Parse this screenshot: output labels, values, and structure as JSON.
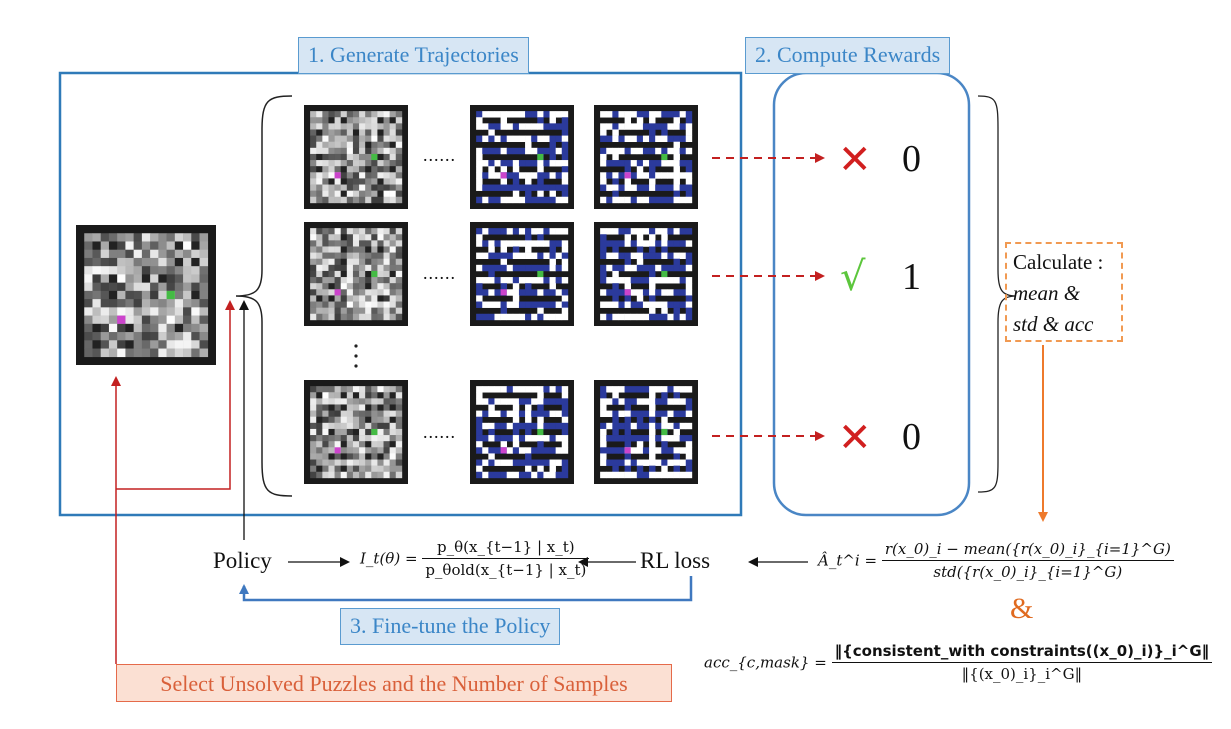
{
  "steps": {
    "generate": "1. Generate Trajectories",
    "compute": "2. Compute Rewards",
    "finetune": "3. Fine-tune the Policy"
  },
  "rewards": [
    {
      "mark": "✕",
      "value": "0",
      "correct": false
    },
    {
      "mark": "√",
      "value": "1",
      "correct": true
    },
    {
      "mark": "✕",
      "value": "0",
      "correct": false
    }
  ],
  "ellipsis_h": "......",
  "ellipsis_v": "⋮",
  "calculate": {
    "title": "Calculate :",
    "line1": "mean &",
    "line2": "std & acc"
  },
  "policy_loop": {
    "policy": "Policy",
    "rl_loss": "RL loss",
    "ratio_lhs": "I_t(θ) =",
    "ratio_num": "p_θ(x_{t−1} | x_t)",
    "ratio_den": "p_θold(x_{t−1} | x_t)"
  },
  "advantage": {
    "lhs": "Â_t^i =",
    "num": "r(x_0)_i − mean({r(x_0)_i}_{i=1}^G)",
    "den": "std({r(x_0)_i}_{i=1}^G)"
  },
  "amp": "&",
  "accuracy": {
    "lhs": "acc_{c,mask} =",
    "num": "‖{consistent_with constraints((x_0)_i)}_i^G‖",
    "den": "‖{(x_0)_i}_i^G‖"
  },
  "select": "Select Unsolved Puzzles and the Number of Samples",
  "colors": {
    "blue_box": "#2f7ab8",
    "label_bg": "#d7e6f4",
    "label_text": "#3b86c7",
    "reward_box": "#4a86c5",
    "arrow_red": "#c32020",
    "arrow_orange": "#ee7a2c",
    "maze_path": "#2b3a9c",
    "start": "#cc44cc",
    "goal": "#44bb44"
  }
}
